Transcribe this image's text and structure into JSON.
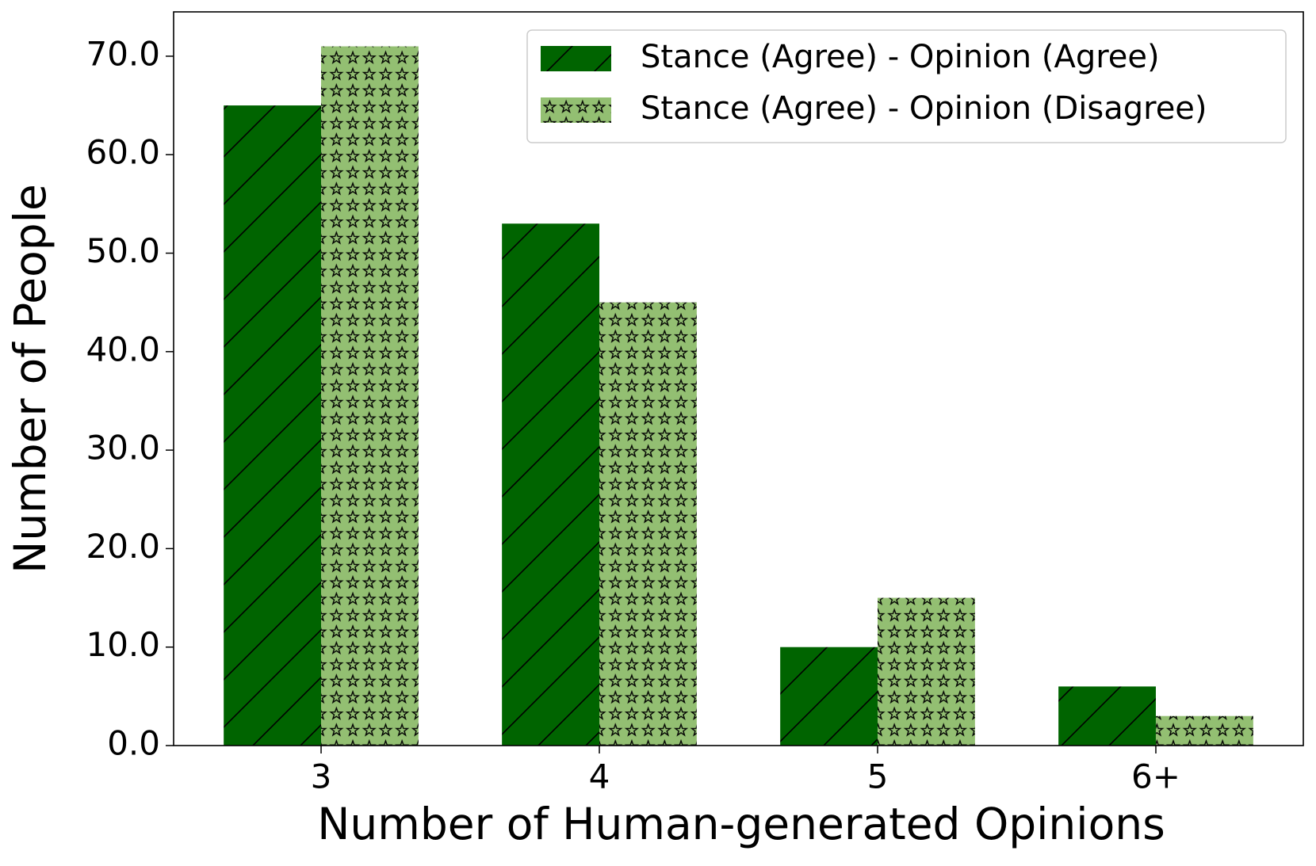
{
  "chart_data": {
    "type": "bar",
    "x_label": "Number of Human-generated Opinions",
    "y_label": "Number of People",
    "categories": [
      "3",
      "4",
      "5",
      "6+"
    ],
    "series": [
      {
        "name": "Stance (Agree) - Opinion (Agree)",
        "color": "#006400",
        "hatch": "/",
        "values": [
          65,
          53,
          10,
          6
        ]
      },
      {
        "name": "Stance (Agree) - Opinion (Disagree)",
        "color": "#93bf72",
        "hatch": "*",
        "values": [
          71,
          45,
          15,
          3
        ]
      }
    ],
    "ylim": [
      0,
      74.5
    ],
    "yticks": [
      {
        "value": 0,
        "label": "0.0"
      },
      {
        "value": 10,
        "label": "10.0"
      },
      {
        "value": 20,
        "label": "20.0"
      },
      {
        "value": 30,
        "label": "30.0"
      },
      {
        "value": 40,
        "label": "40.0"
      },
      {
        "value": 50,
        "label": "50.0"
      },
      {
        "value": 60,
        "label": "60.0"
      },
      {
        "value": 70,
        "label": "70.0"
      }
    ],
    "legend": "upper right"
  }
}
